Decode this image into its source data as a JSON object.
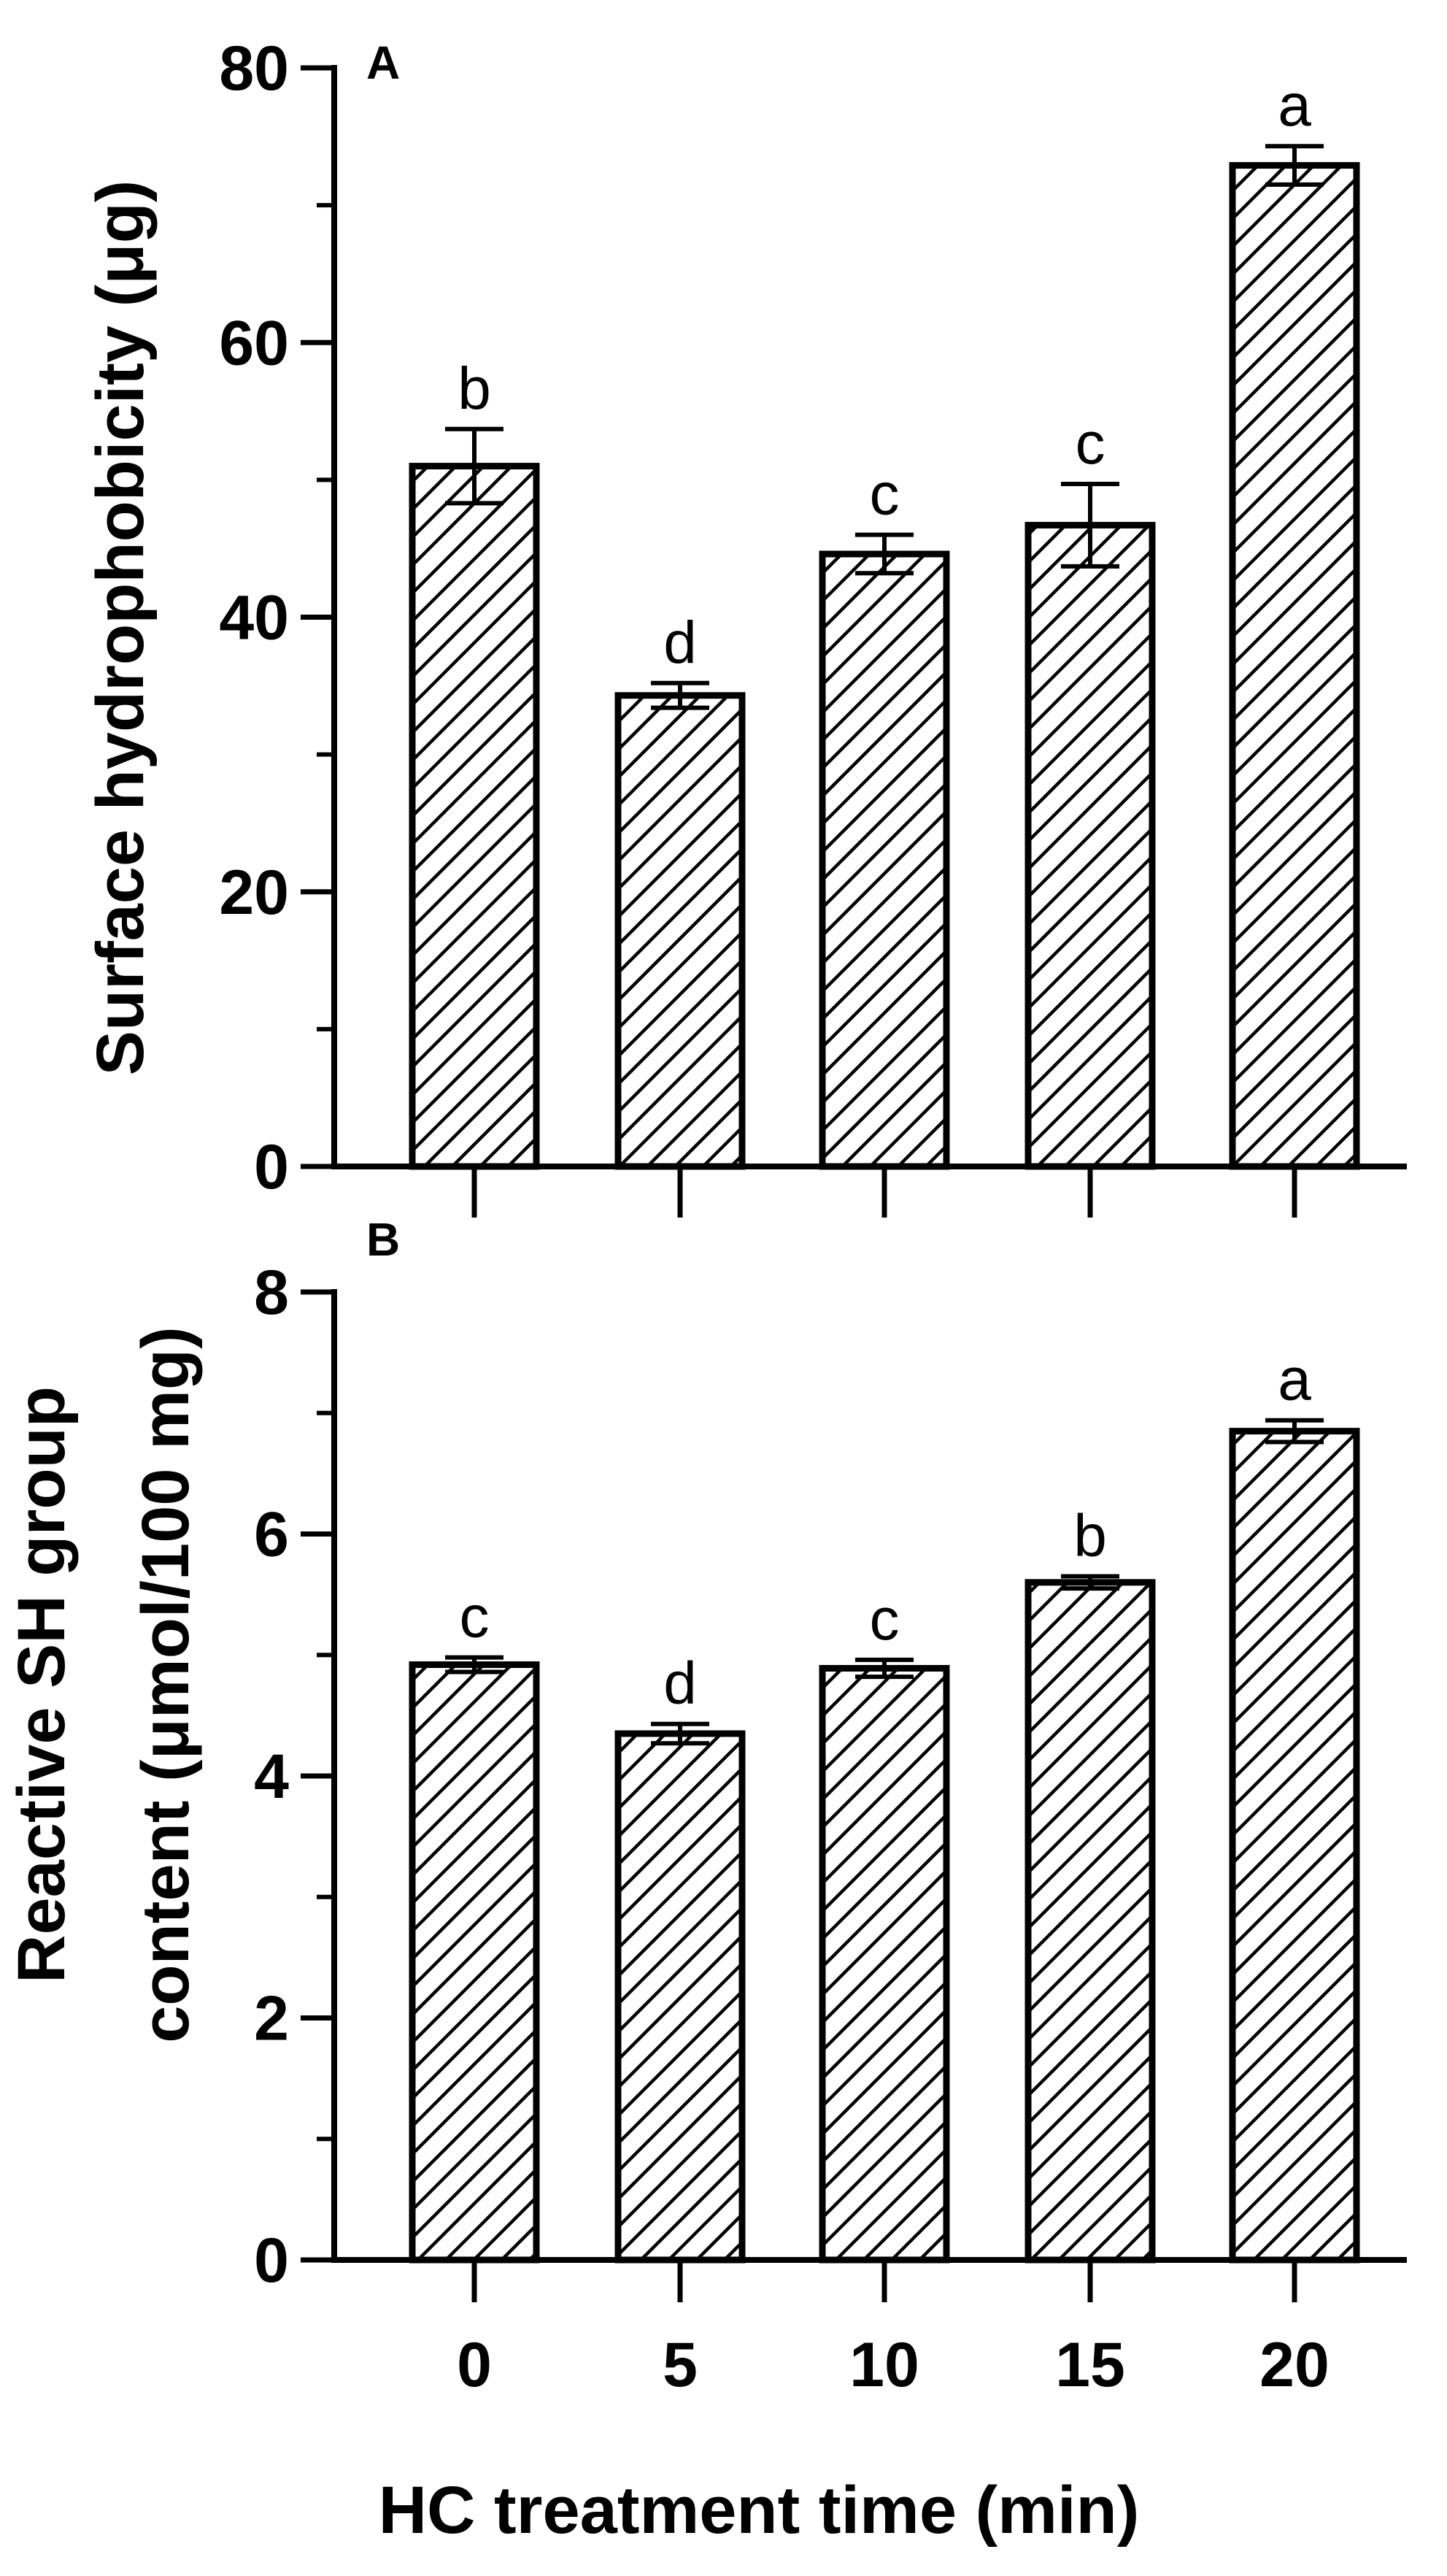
{
  "chart_data": [
    {
      "type": "bar",
      "panel_label": "A",
      "categories": [
        "0",
        "5",
        "10",
        "15",
        "20"
      ],
      "values": [
        51.0,
        34.3,
        44.6,
        46.7,
        72.9
      ],
      "errors": [
        2.7,
        0.9,
        1.4,
        3.0,
        1.4
      ],
      "significance": [
        "b",
        "d",
        "c",
        "c",
        "a"
      ],
      "ylabel": "Surface hydrophobicity (μg)",
      "ylim": [
        0,
        80
      ],
      "yticks": [
        "0",
        "20",
        "40",
        "60",
        "80"
      ],
      "pattern": "diagonal-hatch",
      "grid": false
    },
    {
      "type": "bar",
      "panel_label": "B",
      "categories": [
        "0",
        "5",
        "10",
        "15",
        "20"
      ],
      "values": [
        4.92,
        4.35,
        4.89,
        5.6,
        6.85
      ],
      "errors": [
        0.06,
        0.08,
        0.07,
        0.05,
        0.09
      ],
      "significance": [
        "c",
        "d",
        "c",
        "b",
        "a"
      ],
      "ylabel_line1": "Reactive SH group",
      "ylabel_line2": "content (μmol/100 mg)",
      "ylim": [
        0,
        8
      ],
      "yticks": [
        "0",
        "2",
        "4",
        "6",
        "8"
      ],
      "xticks": [
        "0",
        "5",
        "10",
        "15",
        "20"
      ],
      "xlabel": "HC treatment time (min)",
      "pattern": "diagonal-hatch",
      "grid": false
    }
  ]
}
